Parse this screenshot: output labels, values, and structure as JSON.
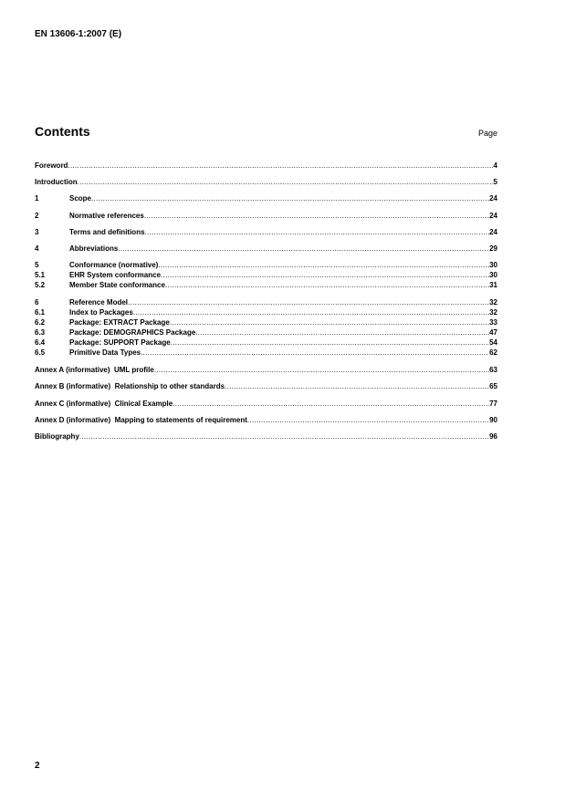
{
  "header": {
    "doc_id": "EN 13606-1:2007 (E)"
  },
  "contents": {
    "title": "Contents",
    "page_label": "Page",
    "entries": [
      {
        "num": "",
        "title": "Foreword",
        "page": "4"
      },
      {
        "num": "",
        "title": "Introduction",
        "page": "5"
      },
      {
        "num": "1",
        "title": "Scope",
        "page": "24"
      },
      {
        "num": "2",
        "title": "Normative references",
        "page": "24"
      },
      {
        "num": "3",
        "title": "Terms and definitions",
        "page": "24"
      },
      {
        "num": "4",
        "title": "Abbreviations",
        "page": "29"
      },
      {
        "num": "5",
        "title": "Conformance (normative)",
        "page": "30"
      },
      {
        "num": "5.1",
        "title": "EHR System conformance",
        "page": "30"
      },
      {
        "num": "5.2",
        "title": "Member State conformance",
        "page": "31"
      },
      {
        "num": "6",
        "title": "Reference Model",
        "page": "32"
      },
      {
        "num": "6.1",
        "title": "Index to Packages",
        "page": "32"
      },
      {
        "num": "6.2",
        "title": "Package: EXTRACT Package",
        "page": "33"
      },
      {
        "num": "6.3",
        "title": "Package: DEMOGRAPHICS Package",
        "page": "47"
      },
      {
        "num": "6.4",
        "title": "Package: SUPPORT Package",
        "page": "54"
      },
      {
        "num": "6.5",
        "title": "Primitive Data Types",
        "page": "62"
      },
      {
        "num": "",
        "title": "Annex A (informative)  UML profile",
        "page": "63"
      },
      {
        "num": "",
        "title": "Annex B (informative)  Relationship to other standards",
        "page": "65"
      },
      {
        "num": "",
        "title": "Annex C (informative)  Clinical Example",
        "page": "77"
      },
      {
        "num": "",
        "title": "Annex D (informative)  Mapping to statements of requirement",
        "page": "90"
      },
      {
        "num": "",
        "title": "Bibliography",
        "page": "96"
      }
    ]
  },
  "footer": {
    "page_number": "2"
  }
}
